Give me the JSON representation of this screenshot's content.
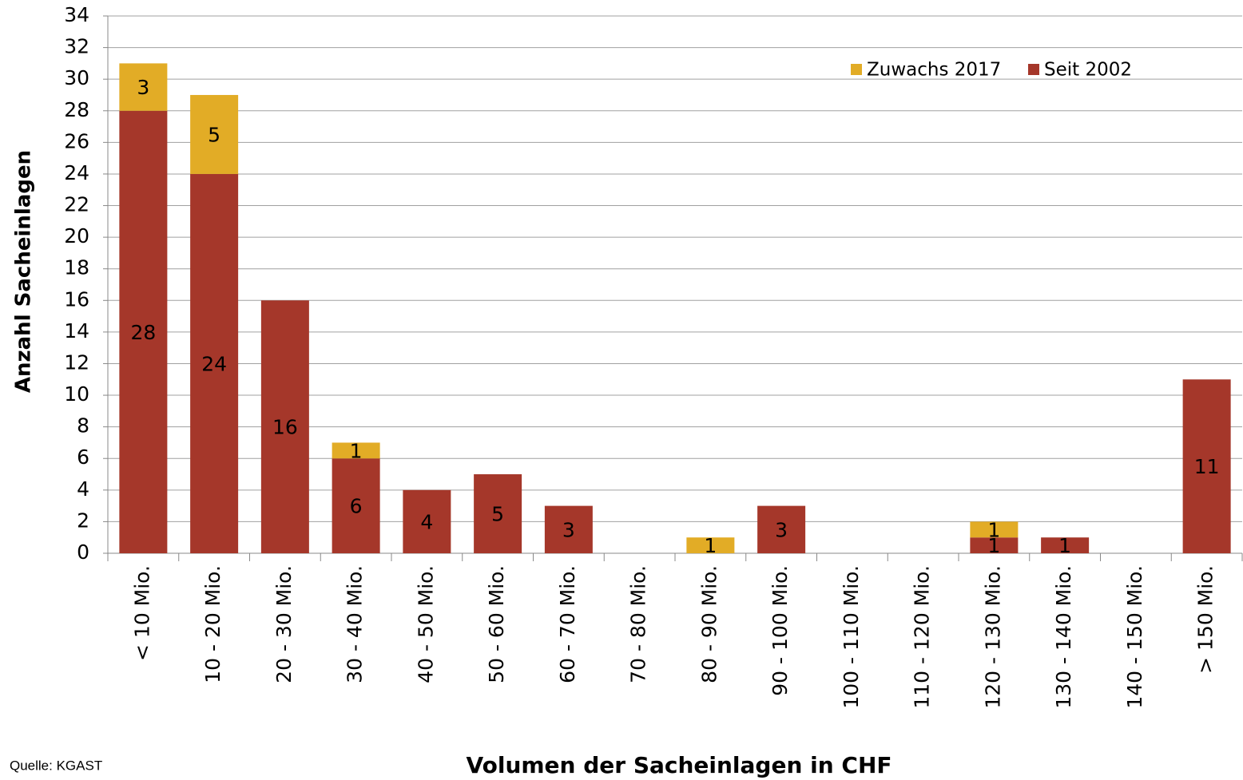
{
  "chart_data": {
    "type": "stacked_bar",
    "x_label": "Volumen der Sacheinlagen in CHF",
    "y_label": "Anzahl Sacheinlagen",
    "source": "Quelle: KGAST",
    "categories": [
      "< 10 Mio.",
      "10 - 20 Mio.",
      "20 - 30 Mio.",
      "30 - 40 Mio.",
      "40 - 50 Mio.",
      "50 - 60 Mio.",
      "60 - 70 Mio.",
      "70 - 80 Mio.",
      "80 - 90 Mio.",
      "90 - 100 Mio.",
      "100 - 110 Mio.",
      "110 - 120 Mio.",
      "120 - 130 Mio.",
      "130 - 140 Mio.",
      "140 - 150 Mio.",
      "> 150 Mio."
    ],
    "series": [
      {
        "name": "Seit 2002",
        "color": "#a5372a",
        "values": [
          28,
          24,
          16,
          6,
          4,
          5,
          3,
          0,
          0,
          3,
          0,
          0,
          1,
          1,
          0,
          11
        ]
      },
      {
        "name": "Zuwachs 2017",
        "color": "#e2ac26",
        "values": [
          3,
          5,
          0,
          1,
          0,
          0,
          0,
          0,
          1,
          0,
          0,
          0,
          1,
          0,
          0,
          0
        ]
      }
    ],
    "ylim": [
      0,
      34
    ],
    "yticks": [
      0,
      2,
      4,
      6,
      8,
      10,
      12,
      14,
      16,
      18,
      20,
      22,
      24,
      26,
      28,
      30,
      32,
      34
    ],
    "grid": true,
    "legend": "top-right"
  }
}
